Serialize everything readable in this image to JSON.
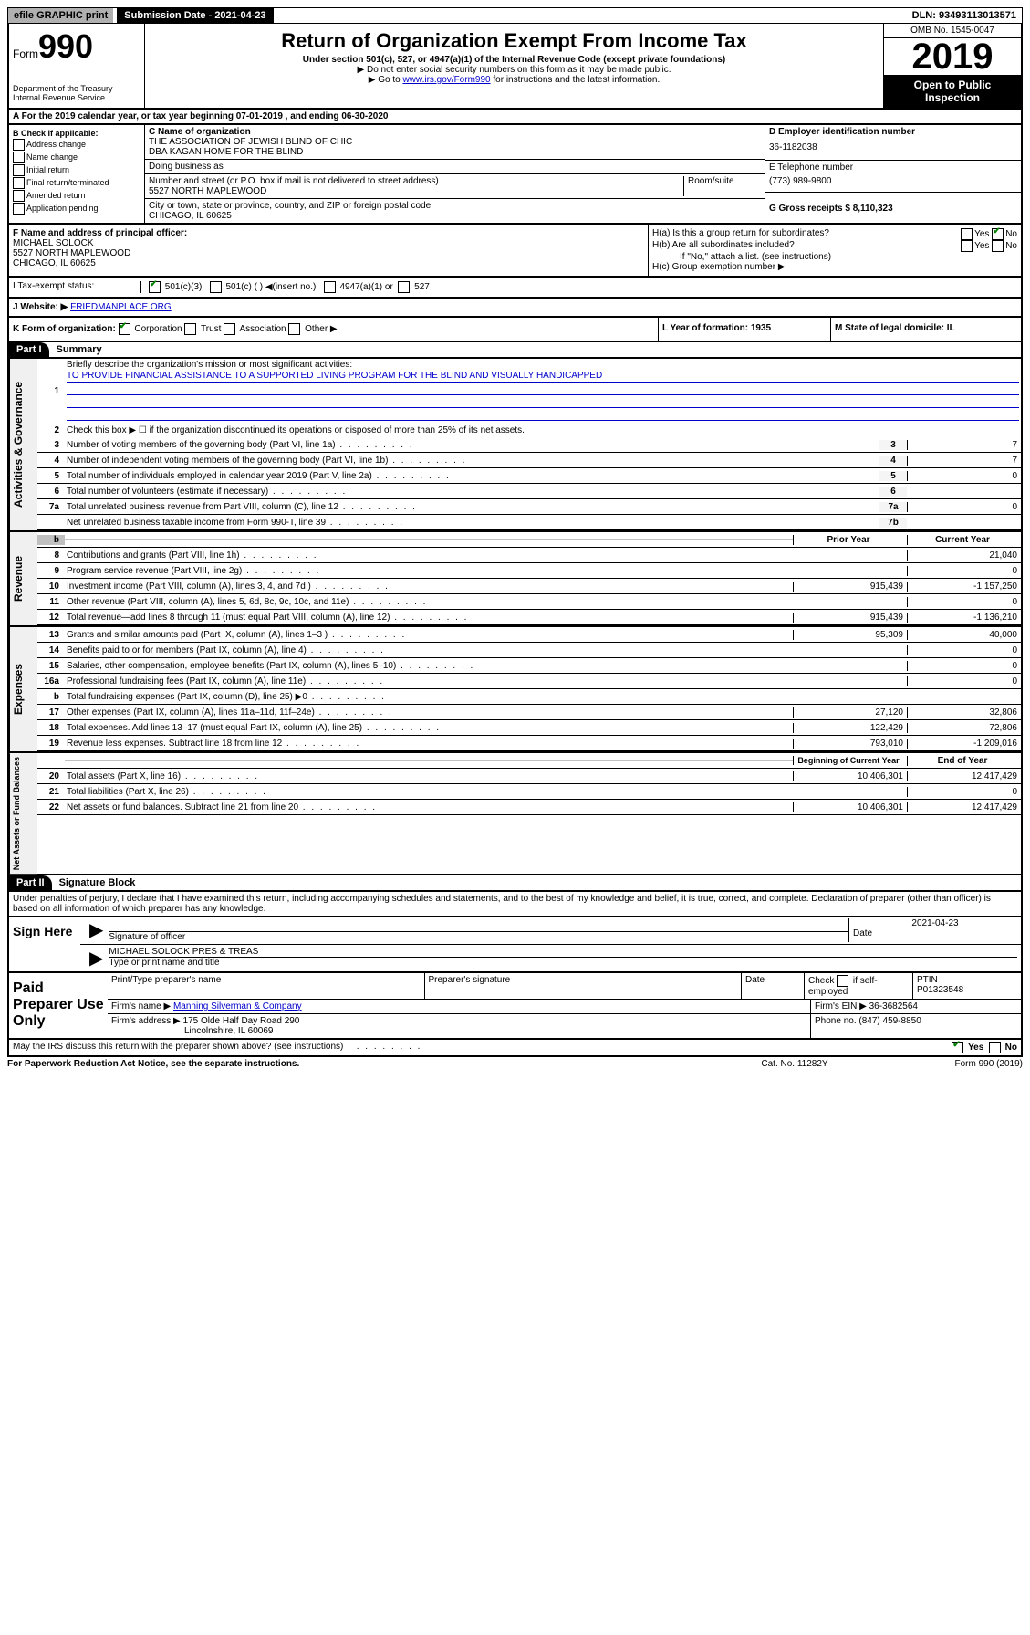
{
  "topbar": {
    "efile": "efile GRAPHIC print",
    "submission": "Submission Date - 2021-04-23",
    "dln": "DLN: 93493113013571"
  },
  "header": {
    "form_label": "Form",
    "form_num": "990",
    "dept": "Department of the Treasury\nInternal Revenue Service",
    "title": "Return of Organization Exempt From Income Tax",
    "sub": "Under section 501(c), 527, or 4947(a)(1) of the Internal Revenue Code (except private foundations)",
    "note1": "▶ Do not enter social security numbers on this form as it may be made public.",
    "note2_pre": "▶ Go to ",
    "note2_link": "www.irs.gov/Form990",
    "note2_post": " for instructions and the latest information.",
    "omb": "OMB No. 1545-0047",
    "year": "2019",
    "inspect": "Open to Public Inspection"
  },
  "row_a": "A For the 2019 calendar year, or tax year beginning 07-01-2019   , and ending 06-30-2020",
  "section_b": {
    "label": "B Check if applicable:",
    "items": [
      "Address change",
      "Name change",
      "Initial return",
      "Final return/terminated",
      "Amended return",
      "Application pending"
    ]
  },
  "section_c": {
    "name_label": "C Name of organization",
    "name": "THE ASSOCIATION OF JEWISH BLIND OF CHIC\nDBA KAGAN HOME FOR THE BLIND",
    "dba_label": "Doing business as",
    "addr_label": "Number and street (or P.O. box if mail is not delivered to street address)",
    "addr": "5527 NORTH MAPLEWOOD",
    "room_label": "Room/suite",
    "city_label": "City or town, state or province, country, and ZIP or foreign postal code",
    "city": "CHICAGO, IL  60625"
  },
  "section_right": {
    "d_label": "D Employer identification number",
    "d_val": "36-1182038",
    "e_label": "E Telephone number",
    "e_val": "(773) 989-9800",
    "g_label": "G Gross receipts $ 8,110,323"
  },
  "section_f": {
    "label": "F  Name and address of principal officer:",
    "name": "MICHAEL SOLOCK",
    "addr": "5527 NORTH MAPLEWOOD\nCHICAGO, IL  60625"
  },
  "section_h": {
    "a": "H(a)  Is this a group return for subordinates?",
    "b": "H(b)  Are all subordinates included?",
    "b_note": "If \"No,\" attach a list. (see instructions)",
    "c": "H(c)  Group exemption number ▶",
    "yes": "Yes",
    "no": "No"
  },
  "tax_status": {
    "label": "I  Tax-exempt status:",
    "opt1": "501(c)(3)",
    "opt2": "501(c) (  ) ◀(insert no.)",
    "opt3": "4947(a)(1) or",
    "opt4": "527"
  },
  "website": {
    "label": "J  Website: ▶",
    "val": "FRIEDMANPLACE.ORG"
  },
  "klm": {
    "k": "K Form of organization:",
    "k_opts": [
      "Corporation",
      "Trust",
      "Association",
      "Other ▶"
    ],
    "l": "L Year of formation: 1935",
    "m": "M State of legal domicile: IL"
  },
  "part1": {
    "header": "Part I",
    "title": "Summary",
    "q1": "Briefly describe the organization's mission or most significant activities:",
    "q1_ans": "TO PROVIDE FINANCIAL ASSISTANCE TO A SUPPORTED LIVING PROGRAM FOR THE BLIND AND VISUALLY HANDICAPPED",
    "q2": "Check this box ▶ ☐  if the organization discontinued its operations or disposed of more than 25% of its net assets.",
    "prior": "Prior Year",
    "current": "Current Year",
    "begin": "Beginning of Current Year",
    "end": "End of Year"
  },
  "lines_gov": [
    {
      "n": "3",
      "d": "Number of voting members of the governing body (Part VI, line 1a)",
      "box": "3",
      "v": "7"
    },
    {
      "n": "4",
      "d": "Number of independent voting members of the governing body (Part VI, line 1b)",
      "box": "4",
      "v": "7"
    },
    {
      "n": "5",
      "d": "Total number of individuals employed in calendar year 2019 (Part V, line 2a)",
      "box": "5",
      "v": "0"
    },
    {
      "n": "6",
      "d": "Total number of volunteers (estimate if necessary)",
      "box": "6",
      "v": ""
    },
    {
      "n": "7a",
      "d": "Total unrelated business revenue from Part VIII, column (C), line 12",
      "box": "7a",
      "v": "0"
    },
    {
      "n": "",
      "d": "Net unrelated business taxable income from Form 990-T, line 39",
      "box": "7b",
      "v": ""
    }
  ],
  "lines_rev": [
    {
      "n": "8",
      "d": "Contributions and grants (Part VIII, line 1h)",
      "p": "",
      "c": "21,040"
    },
    {
      "n": "9",
      "d": "Program service revenue (Part VIII, line 2g)",
      "p": "",
      "c": "0"
    },
    {
      "n": "10",
      "d": "Investment income (Part VIII, column (A), lines 3, 4, and 7d )",
      "p": "915,439",
      "c": "-1,157,250"
    },
    {
      "n": "11",
      "d": "Other revenue (Part VIII, column (A), lines 5, 6d, 8c, 9c, 10c, and 11e)",
      "p": "",
      "c": "0"
    },
    {
      "n": "12",
      "d": "Total revenue—add lines 8 through 11 (must equal Part VIII, column (A), line 12)",
      "p": "915,439",
      "c": "-1,136,210"
    }
  ],
  "lines_exp": [
    {
      "n": "13",
      "d": "Grants and similar amounts paid (Part IX, column (A), lines 1–3 )",
      "p": "95,309",
      "c": "40,000"
    },
    {
      "n": "14",
      "d": "Benefits paid to or for members (Part IX, column (A), line 4)",
      "p": "",
      "c": "0"
    },
    {
      "n": "15",
      "d": "Salaries, other compensation, employee benefits (Part IX, column (A), lines 5–10)",
      "p": "",
      "c": "0"
    },
    {
      "n": "16a",
      "d": "Professional fundraising fees (Part IX, column (A), line 11e)",
      "p": "",
      "c": "0"
    },
    {
      "n": "b",
      "d": "Total fundraising expenses (Part IX, column (D), line 25) ▶0",
      "p": "shade",
      "c": "shade"
    },
    {
      "n": "17",
      "d": "Other expenses (Part IX, column (A), lines 11a–11d, 11f–24e)",
      "p": "27,120",
      "c": "32,806"
    },
    {
      "n": "18",
      "d": "Total expenses. Add lines 13–17 (must equal Part IX, column (A), line 25)",
      "p": "122,429",
      "c": "72,806"
    },
    {
      "n": "19",
      "d": "Revenue less expenses. Subtract line 18 from line 12",
      "p": "793,010",
      "c": "-1,209,016"
    }
  ],
  "lines_net": [
    {
      "n": "20",
      "d": "Total assets (Part X, line 16)",
      "p": "10,406,301",
      "c": "12,417,429"
    },
    {
      "n": "21",
      "d": "Total liabilities (Part X, line 26)",
      "p": "",
      "c": "0"
    },
    {
      "n": "22",
      "d": "Net assets or fund balances. Subtract line 21 from line 20",
      "p": "10,406,301",
      "c": "12,417,429"
    }
  ],
  "part2": {
    "header": "Part II",
    "title": "Signature Block",
    "decl": "Under penalties of perjury, I declare that I have examined this return, including accompanying schedules and statements, and to the best of my knowledge and belief, it is true, correct, and complete. Declaration of preparer (other than officer) is based on all information of which preparer has any knowledge."
  },
  "sign": {
    "label": "Sign Here",
    "sig_label": "Signature of officer",
    "date": "2021-04-23",
    "date_label": "Date",
    "name": "MICHAEL SOLOCK  PRES & TREAS",
    "name_label": "Type or print name and title"
  },
  "paid": {
    "label": "Paid Preparer Use Only",
    "h1": "Print/Type preparer's name",
    "h2": "Preparer's signature",
    "h3": "Date",
    "h4_pre": "Check",
    "h4_post": "if self-employed",
    "h5": "PTIN",
    "ptin": "P01323548",
    "firm_label": "Firm's name    ▶",
    "firm": "Manning Silverman & Company",
    "ein_label": "Firm's EIN ▶",
    "ein": "36-3682564",
    "addr_label": "Firm's address ▶",
    "addr": "175 Olde Half Day Road 290",
    "addr2": "Lincolnshire, IL  60069",
    "phone_label": "Phone no.",
    "phone": "(847) 459-8850"
  },
  "footer": {
    "discuss": "May the IRS discuss this return with the preparer shown above? (see instructions)",
    "yes": "Yes",
    "no": "No",
    "paperwork": "For Paperwork Reduction Act Notice, see the separate instructions.",
    "cat": "Cat. No. 11282Y",
    "form": "Form 990 (2019)"
  }
}
